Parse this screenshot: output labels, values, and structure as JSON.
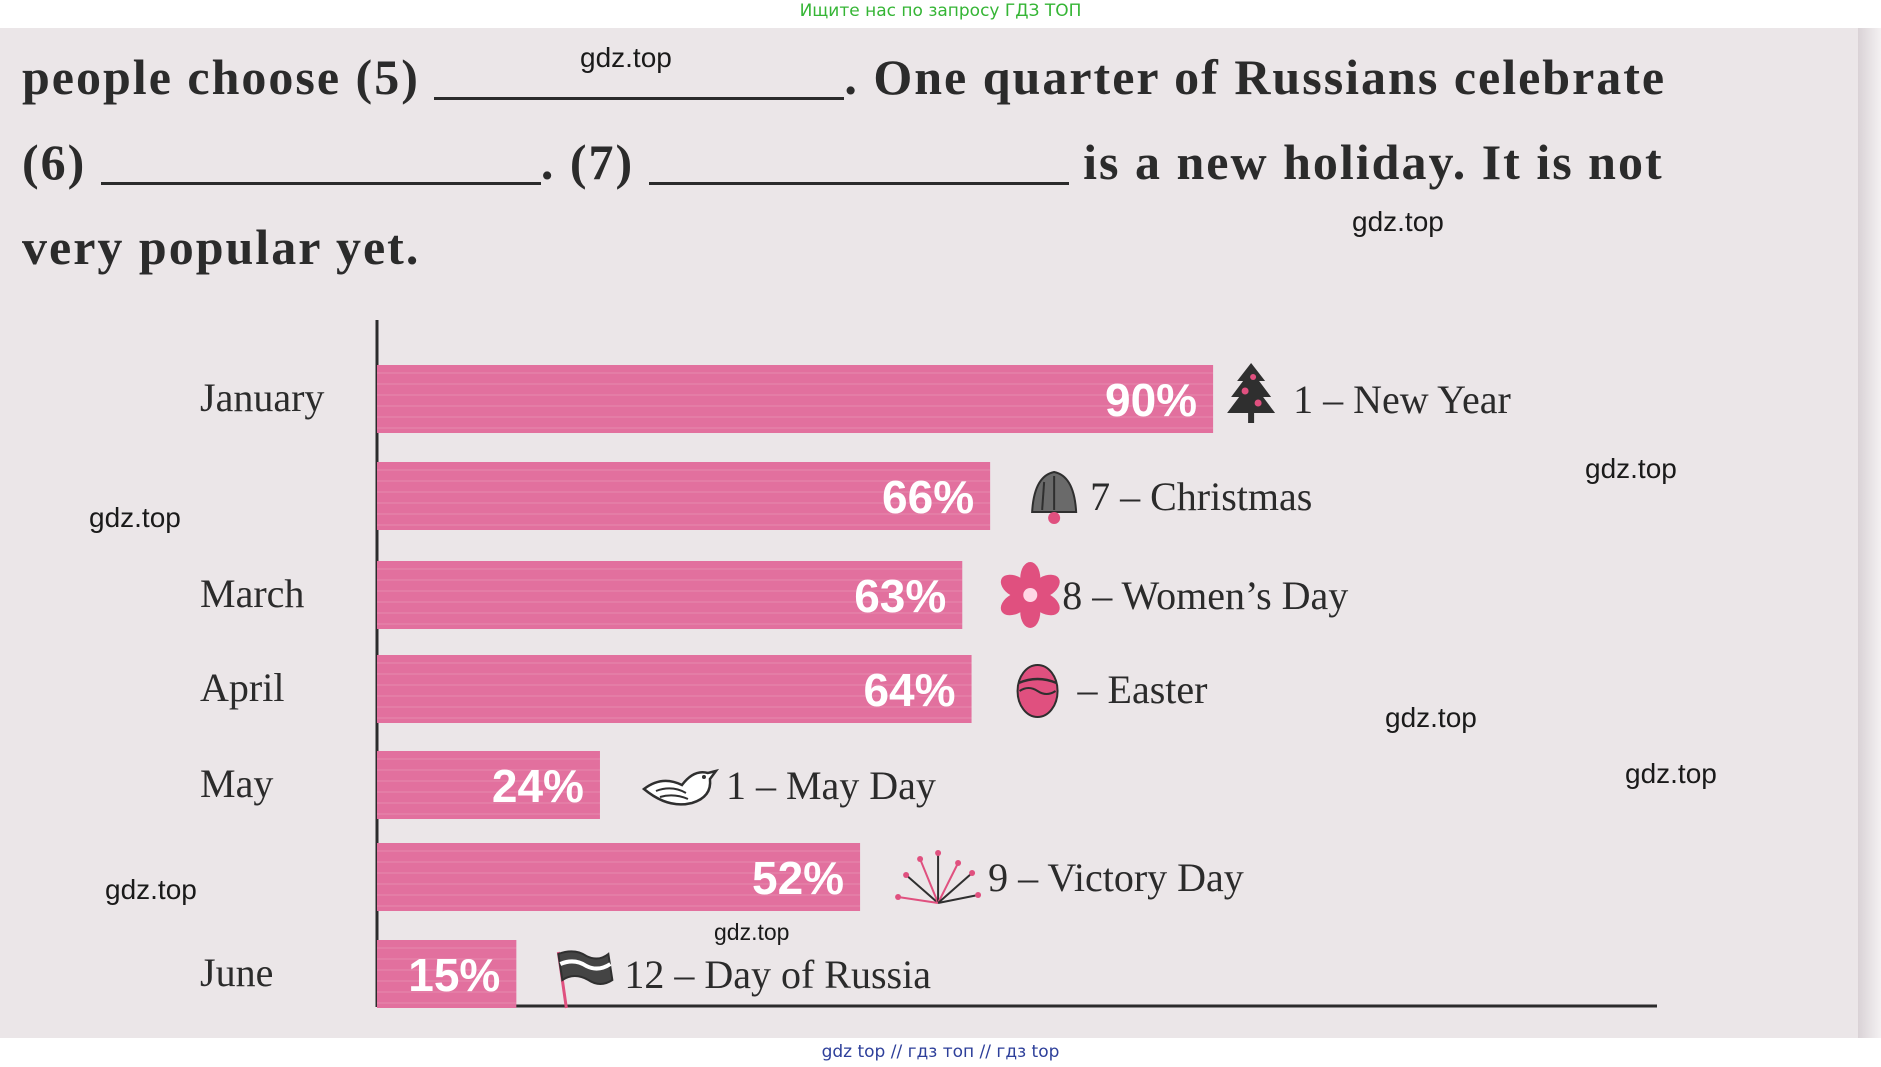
{
  "banners": {
    "top": "Ищите нас по запросу ГДЗ ТОП",
    "bottom": "gdz top  //  гдз топ  //  гдз top"
  },
  "text": {
    "line1_a": "people choose (5)",
    "line1_b": ". One quarter of Russians celebrate",
    "line2_a": "(6)",
    "line2_b": ". (7)",
    "line2_c": "is a new holiday. It is not",
    "line3": "very popular yet."
  },
  "watermarks": [
    "gdz.top",
    "gdz.top",
    "gdz.top",
    "gdz.top",
    "gdz.top",
    "gdz.top",
    "gdz.top",
    "gdz.top"
  ],
  "chart_data": {
    "type": "bar",
    "orientation": "horizontal",
    "categories": [
      "January",
      "",
      "March",
      "April",
      "May",
      "",
      "June"
    ],
    "values": [
      90,
      66,
      63,
      64,
      24,
      52,
      15
    ],
    "value_labels": [
      "90%",
      "66%",
      "63%",
      "64%",
      "24%",
      "52%",
      "15%"
    ],
    "annotations": [
      {
        "text": "1 – New Year",
        "icon": "christmas-tree-icon"
      },
      {
        "text": "7 – Christmas",
        "icon": "bell-icon"
      },
      {
        "text": "8 – Women’s Day",
        "icon": "flower-icon"
      },
      {
        "text": "– Easter",
        "icon": "easter-egg-icon"
      },
      {
        "text": "1 – May Day",
        "icon": "dove-icon"
      },
      {
        "text": "9 – Victory Day",
        "icon": "fireworks-icon"
      },
      {
        "text": "12 – Day of Russia",
        "icon": "flag-icon"
      }
    ],
    "xlim": [
      0,
      100
    ],
    "title": "",
    "xlabel": "",
    "ylabel": "",
    "colors": {
      "bar": "#e2709e",
      "axis": "#2b2b2b",
      "icon_pink": "#e0507f",
      "icon_dark": "#333333"
    }
  }
}
